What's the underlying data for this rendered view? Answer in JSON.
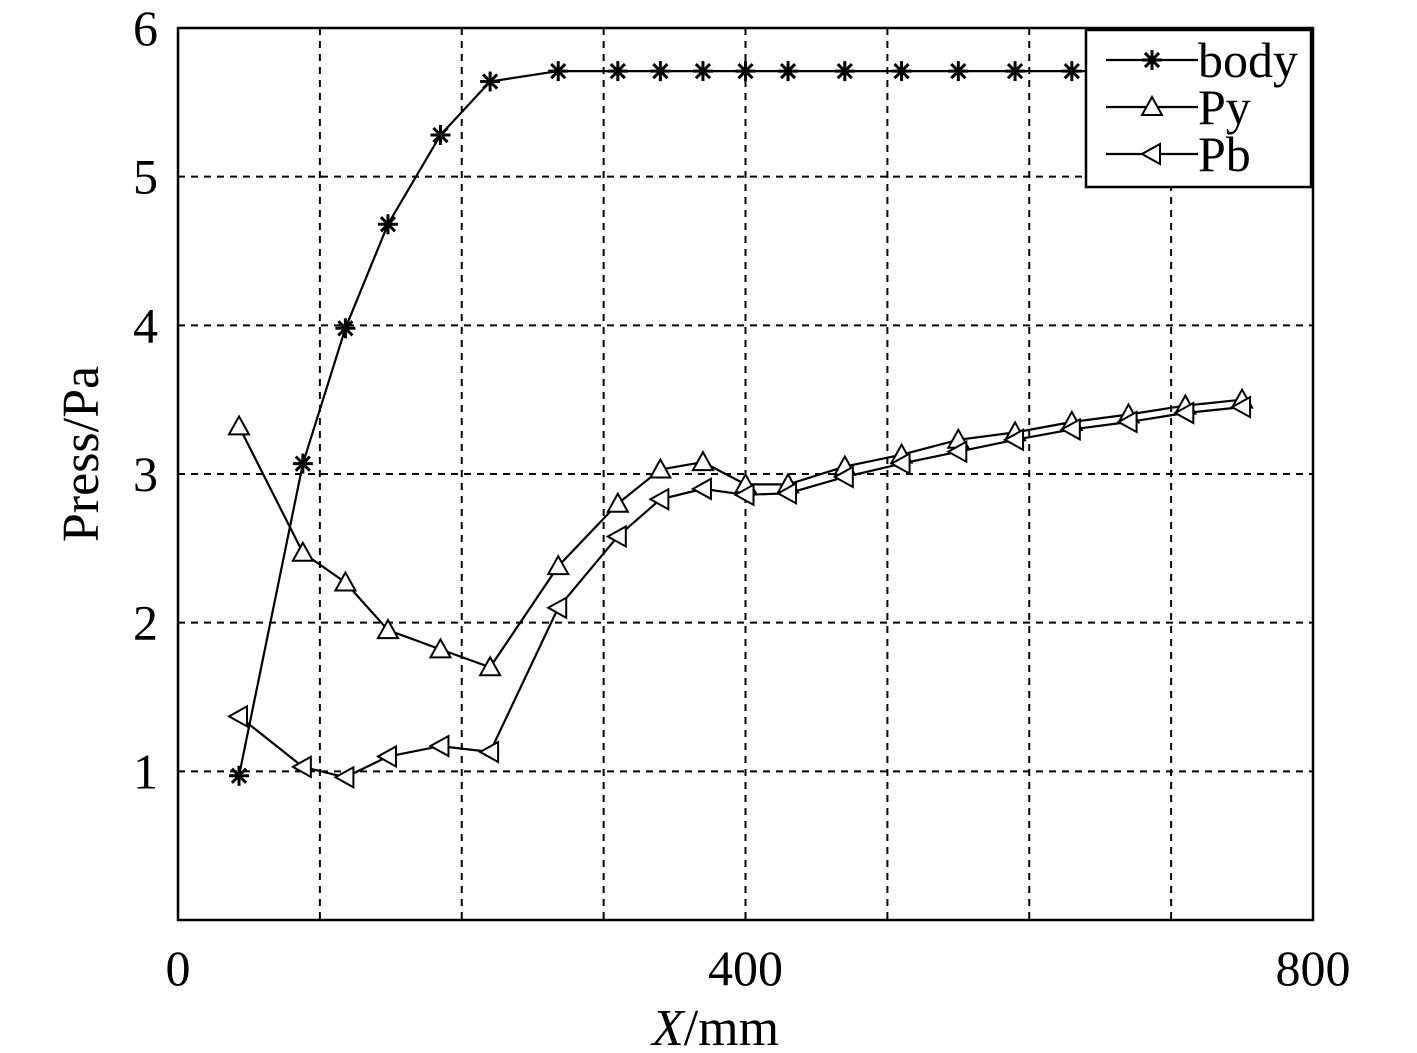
{
  "chart_data": {
    "type": "line",
    "title": "",
    "xlabel": "X",
    "xlabel_unit": "/mm",
    "ylabel": "Press/Pa",
    "xlim": [
      0,
      800
    ],
    "ylim": [
      0,
      6
    ],
    "x_ticks": [
      0,
      400,
      800
    ],
    "y_ticks": [
      1,
      2,
      3,
      4,
      5,
      6
    ],
    "x_grid": [
      100,
      200,
      300,
      400,
      500,
      600,
      700
    ],
    "grid": true,
    "legend_position": "top-right",
    "series": [
      {
        "name": "body",
        "marker": "asterisk",
        "x": [
          43,
          88,
          118,
          148,
          185,
          220,
          268,
          310,
          340,
          370,
          400,
          430,
          470,
          510,
          550,
          590,
          630,
          670,
          710,
          750
        ],
        "y": [
          0.97,
          3.07,
          3.98,
          4.68,
          5.28,
          5.64,
          5.71,
          5.71,
          5.71,
          5.71,
          5.71,
          5.71,
          5.71,
          5.71,
          5.71,
          5.71,
          5.71,
          5.71,
          5.71,
          5.71
        ]
      },
      {
        "name": "Py",
        "marker": "triangle-up",
        "x": [
          43,
          88,
          118,
          148,
          185,
          220,
          268,
          310,
          340,
          370,
          400,
          430,
          470,
          510,
          550,
          590,
          630,
          670,
          710,
          750
        ],
        "y": [
          3.32,
          2.47,
          2.27,
          1.95,
          1.82,
          1.7,
          2.38,
          2.8,
          3.03,
          3.08,
          2.93,
          2.93,
          3.05,
          3.13,
          3.23,
          3.28,
          3.35,
          3.4,
          3.46,
          3.5
        ]
      },
      {
        "name": "Pb",
        "marker": "triangle-left",
        "x": [
          43,
          88,
          118,
          148,
          185,
          220,
          268,
          310,
          340,
          370,
          400,
          430,
          470,
          510,
          550,
          590,
          630,
          670,
          710,
          750
        ],
        "y": [
          1.37,
          1.03,
          0.96,
          1.1,
          1.17,
          1.13,
          2.1,
          2.58,
          2.83,
          2.9,
          2.86,
          2.87,
          2.98,
          3.07,
          3.15,
          3.23,
          3.3,
          3.35,
          3.41,
          3.45
        ]
      }
    ]
  }
}
